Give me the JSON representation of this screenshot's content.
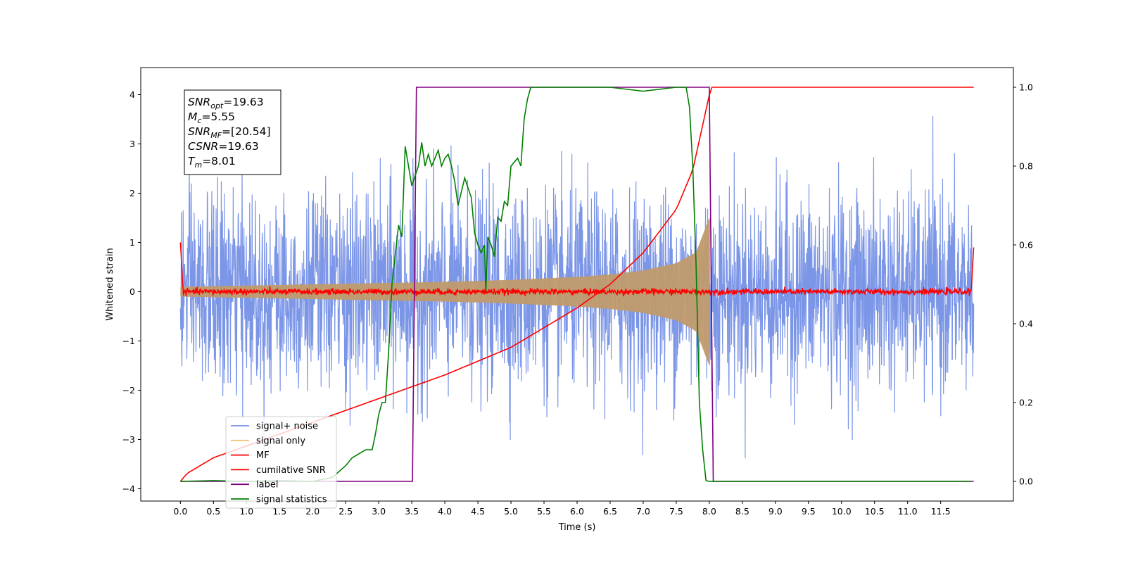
{
  "chart_data": {
    "type": "line",
    "xlabel": "Time (s)",
    "ylabel_left": "Whitened strain",
    "ylabel_right": "",
    "xlim": [
      -0.6,
      12.6
    ],
    "ylim_left": [
      -4.25,
      4.55
    ],
    "ylim_right": [
      -0.05,
      1.05
    ],
    "x_ticks": [
      "0.0",
      "0.5",
      "1.0",
      "1.5",
      "2.0",
      "2.5",
      "3.0",
      "3.5",
      "4.0",
      "4.5",
      "5.0",
      "5.5",
      "6.0",
      "6.5",
      "7.0",
      "7.5",
      "8.0",
      "8.5",
      "9.0",
      "9.5",
      "10.0",
      "10.5",
      "11.0",
      "11.5"
    ],
    "y_ticks_left": [
      "4",
      "3",
      "2",
      "1",
      "0",
      "−1",
      "−2",
      "−3",
      "−4"
    ],
    "y_ticks_right": [
      "1.0",
      "0.8",
      "0.6",
      "0.4",
      "0.2",
      "0.0"
    ],
    "grid": false,
    "legend_position": "lower-left",
    "annotation": {
      "lines": [
        {
          "main": "SNR",
          "sub": "opt",
          "value": "=19.63"
        },
        {
          "main": "M",
          "sub": "c",
          "value": "=5.55"
        },
        {
          "main": "SNR",
          "sub": "MF",
          "value": "=[20.54]"
        },
        {
          "main": "CSNR",
          "sub": "",
          "value": "=19.63"
        },
        {
          "main": "T",
          "sub": "m",
          "value": "=8.01"
        }
      ]
    },
    "series": [
      {
        "name": "signal+ noise",
        "axis": "left",
        "color": "#7590e6",
        "kind": "noise-band",
        "x_range": [
          0.0,
          12.0
        ],
        "amplitude_std": 1.0,
        "visible_range": [
          -3.7,
          4.2
        ]
      },
      {
        "name": "signal only",
        "axis": "left",
        "color": "#f5c27a",
        "kind": "chirp",
        "x_range": [
          0.0,
          8.01
        ],
        "envelope": {
          "x": [
            0.0,
            2.0,
            4.0,
            5.0,
            6.0,
            6.5,
            7.0,
            7.5,
            7.8,
            8.0
          ],
          "y": [
            0.1,
            0.15,
            0.2,
            0.24,
            0.3,
            0.35,
            0.43,
            0.58,
            0.8,
            1.5
          ]
        }
      },
      {
        "name": "MF",
        "axis": "left",
        "color": "#ff0000",
        "kind": "noise-line",
        "x_range": [
          0.0,
          12.0
        ],
        "amplitude_std": 0.03,
        "edges": {
          "start": 1.0,
          "end": 0.9
        }
      },
      {
        "name": "cumilative SNR",
        "axis": "right",
        "color": "#ff0000",
        "kind": "line",
        "x": [
          0.0,
          0.1,
          0.5,
          1.0,
          2.0,
          3.0,
          4.0,
          5.0,
          6.0,
          6.5,
          7.0,
          7.5,
          7.75,
          8.0,
          8.01,
          12.0
        ],
        "y": [
          0.0,
          0.02,
          0.06,
          0.09,
          0.15,
          0.21,
          0.27,
          0.34,
          0.44,
          0.5,
          0.58,
          0.69,
          0.79,
          0.98,
          1.0,
          1.0
        ]
      },
      {
        "name": "label",
        "axis": "right",
        "color": "#800080",
        "kind": "line",
        "x": [
          0.0,
          3.51,
          3.57,
          8.0,
          8.06,
          12.0
        ],
        "y": [
          0.0,
          0.0,
          1.0,
          1.0,
          0.0,
          0.0
        ]
      },
      {
        "name": "signal statistics",
        "axis": "right",
        "color": "#008000",
        "kind": "line",
        "x": [
          0.0,
          0.5,
          1.0,
          1.5,
          2.0,
          2.3,
          2.5,
          2.6,
          2.7,
          2.8,
          2.9,
          2.95,
          3.0,
          3.05,
          3.1,
          3.15,
          3.2,
          3.3,
          3.35,
          3.4,
          3.5,
          3.6,
          3.65,
          3.7,
          3.75,
          3.8,
          3.85,
          3.9,
          3.95,
          4.0,
          4.05,
          4.1,
          4.15,
          4.2,
          4.3,
          4.4,
          4.45,
          4.5,
          4.55,
          4.6,
          4.62,
          4.65,
          4.7,
          4.75,
          4.8,
          4.85,
          4.9,
          4.95,
          5.0,
          5.1,
          5.15,
          5.2,
          5.25,
          5.3,
          5.4,
          5.5,
          5.6,
          6.0,
          6.5,
          7.0,
          7.5,
          7.65,
          7.7,
          7.75,
          7.8,
          7.85,
          7.9,
          7.95,
          8.0,
          8.1,
          9.0,
          10.0,
          11.0,
          11.95
        ],
        "y": [
          0.0,
          0.002,
          0.0,
          0.002,
          0.0,
          0.01,
          0.04,
          0.06,
          0.07,
          0.08,
          0.08,
          0.12,
          0.17,
          0.2,
          0.2,
          0.33,
          0.5,
          0.65,
          0.62,
          0.85,
          0.75,
          0.8,
          0.86,
          0.8,
          0.83,
          0.8,
          0.82,
          0.84,
          0.8,
          0.82,
          0.83,
          0.8,
          0.76,
          0.7,
          0.77,
          0.72,
          0.63,
          0.6,
          0.58,
          0.6,
          0.48,
          0.62,
          0.6,
          0.57,
          0.67,
          0.66,
          0.71,
          0.7,
          0.8,
          0.82,
          0.8,
          0.92,
          0.97,
          1.0,
          1.0,
          1.0,
          1.0,
          1.0,
          1.0,
          0.99,
          1.0,
          1.0,
          0.95,
          0.8,
          0.55,
          0.2,
          0.08,
          0.002,
          0.0,
          0.0,
          0.0,
          0.0,
          0.0,
          0.0
        ]
      }
    ]
  }
}
